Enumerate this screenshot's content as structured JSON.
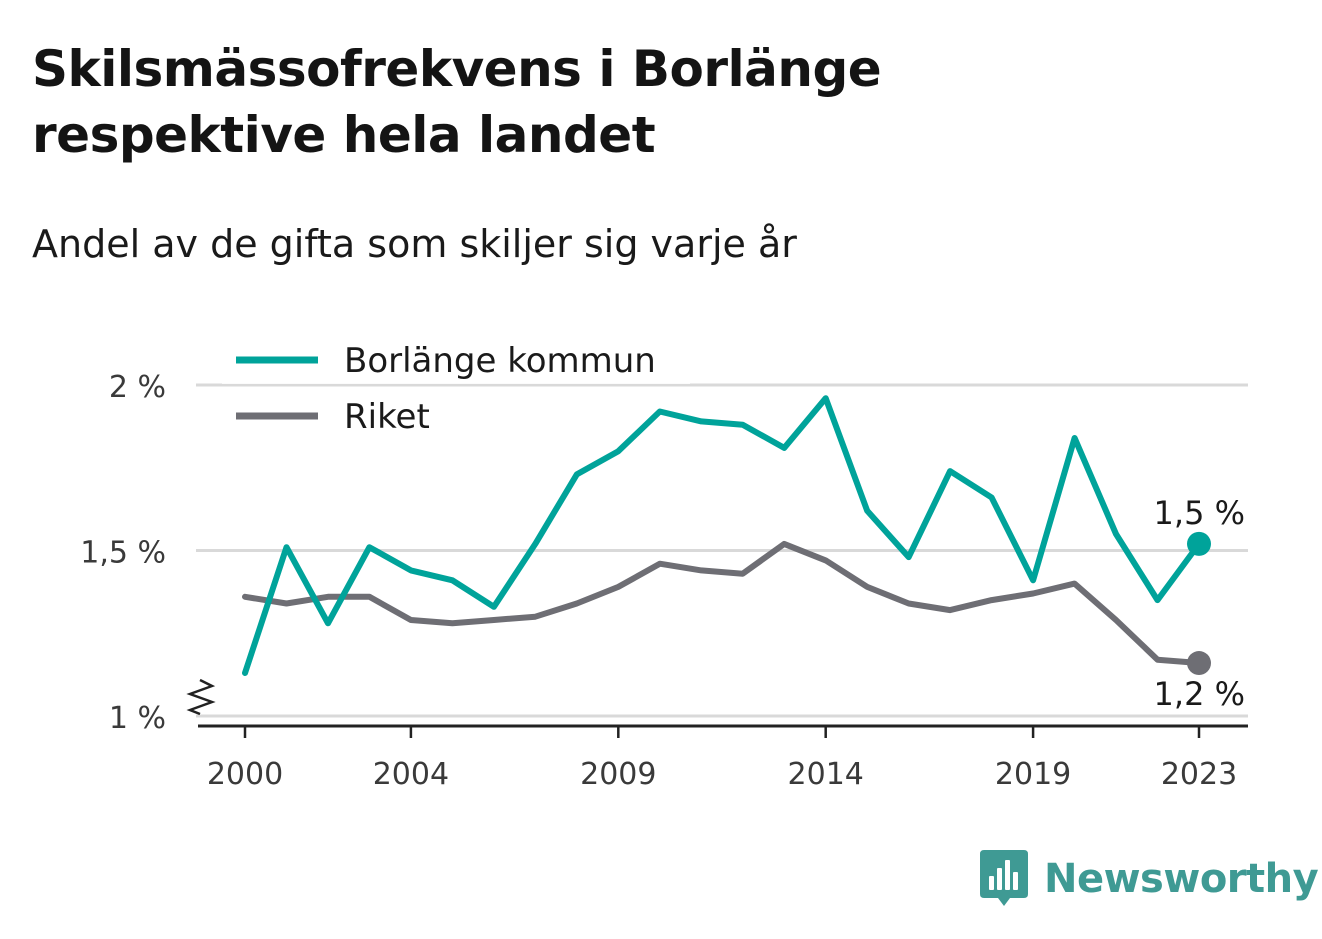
{
  "title": "Skilsmässofrekvens i Borlänge respektive hela landet",
  "subtitle": "Andel av de gifta som skiljer sig varje år",
  "brand": {
    "name": "Newsworthy",
    "icon": "bar-chart-logo-icon"
  },
  "chart_data": {
    "type": "line",
    "x": [
      2000,
      2001,
      2002,
      2003,
      2004,
      2005,
      2006,
      2007,
      2008,
      2009,
      2010,
      2011,
      2012,
      2013,
      2014,
      2015,
      2016,
      2017,
      2018,
      2019,
      2020,
      2021,
      2022,
      2023
    ],
    "x_ticks": [
      2000,
      2004,
      2009,
      2014,
      2019,
      2023
    ],
    "x_tick_labels": [
      "2000",
      "2004",
      "2009",
      "2014",
      "2019",
      "2023"
    ],
    "y_ticks": [
      1.0,
      1.5,
      2.0
    ],
    "y_tick_labels": [
      "1 %",
      "1,5 %",
      "2 %"
    ],
    "ylim": [
      1.0,
      2.0
    ],
    "y_axis_break": true,
    "grid": true,
    "legend_position": "top-left",
    "series": [
      {
        "name": "Borlänge kommun",
        "color": "#00a39a",
        "values": [
          1.13,
          1.51,
          1.28,
          1.51,
          1.44,
          1.41,
          1.33,
          1.52,
          1.73,
          1.8,
          1.92,
          1.89,
          1.88,
          1.81,
          1.96,
          1.62,
          1.48,
          1.74,
          1.66,
          1.41,
          1.84,
          1.55,
          1.35,
          1.52
        ],
        "end_label": "1,5 %"
      },
      {
        "name": "Riket",
        "color": "#6e6e74",
        "values": [
          1.36,
          1.34,
          1.36,
          1.36,
          1.29,
          1.28,
          1.29,
          1.3,
          1.34,
          1.39,
          1.46,
          1.44,
          1.43,
          1.52,
          1.47,
          1.39,
          1.34,
          1.32,
          1.35,
          1.37,
          1.4,
          1.29,
          1.17,
          1.16
        ],
        "end_label": "1,2 %"
      }
    ]
  }
}
